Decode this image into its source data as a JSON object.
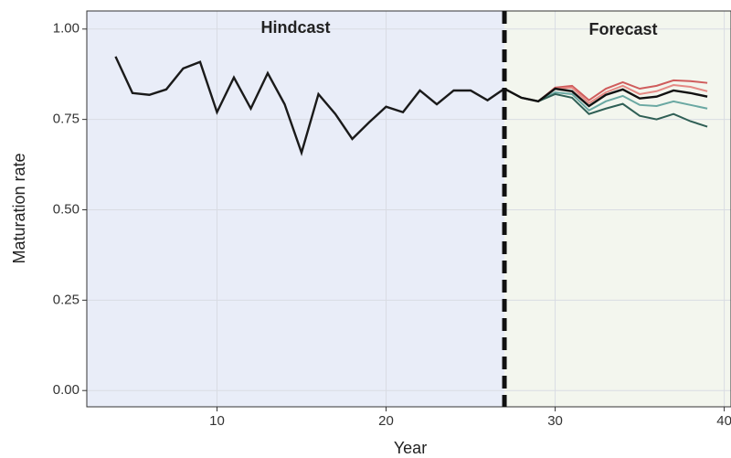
{
  "chart_data": {
    "type": "line",
    "xlabel": "Year",
    "ylabel": "Maturation rate",
    "annotations": [
      "Hindcast",
      "Forecast"
    ],
    "divider_x": 27,
    "xlim": [
      2.3,
      40.4
    ],
    "ylim": [
      -0.045,
      1.05
    ],
    "xticks": [
      10,
      20,
      30,
      40
    ],
    "yticks": [
      {
        "value": 0,
        "label": "0.00"
      },
      0.25,
      {
        "value": 0.5,
        "label": "0.50"
      },
      0.75,
      {
        "value": 1,
        "label": "1.00"
      }
    ],
    "grid": true,
    "series": [
      {
        "color": "#cf5c5c",
        "x": [
          27,
          28,
          29,
          30,
          31,
          32,
          33,
          34,
          35,
          36,
          37,
          38,
          39
        ],
        "values": [
          0.835,
          0.81,
          0.8,
          0.838,
          0.843,
          0.803,
          0.835,
          0.853,
          0.835,
          0.843,
          0.858,
          0.856,
          0.851
        ]
      },
      {
        "color": "#e58a85",
        "x": [
          27,
          28,
          29,
          30,
          31,
          32,
          33,
          34,
          35,
          36,
          37,
          38,
          39
        ],
        "values": [
          0.835,
          0.81,
          0.8,
          0.835,
          0.838,
          0.795,
          0.825,
          0.843,
          0.82,
          0.828,
          0.845,
          0.84,
          0.828
        ]
      },
      {
        "color": "#6aa8a2",
        "x": [
          27,
          28,
          29,
          30,
          31,
          32,
          33,
          34,
          35,
          36,
          37,
          38,
          39
        ],
        "values": [
          0.835,
          0.81,
          0.8,
          0.825,
          0.82,
          0.775,
          0.8,
          0.815,
          0.79,
          0.787,
          0.8,
          0.79,
          0.78
        ]
      },
      {
        "color": "#2f5f55",
        "x": [
          27,
          28,
          29,
          30,
          31,
          32,
          33,
          34,
          35,
          36,
          37,
          38,
          39
        ],
        "values": [
          0.835,
          0.81,
          0.8,
          0.82,
          0.81,
          0.765,
          0.78,
          0.793,
          0.76,
          0.75,
          0.765,
          0.745,
          0.73
        ]
      },
      {
        "color": "#111111",
        "x": [
          27,
          28,
          29,
          30,
          31,
          32,
          33,
          34,
          35,
          36,
          37,
          38,
          39
        ],
        "values": [
          0.835,
          0.81,
          0.8,
          0.835,
          0.828,
          0.787,
          0.818,
          0.833,
          0.808,
          0.813,
          0.83,
          0.823,
          0.813
        ]
      },
      {
        "color": "#1a1a1a",
        "x": [
          4,
          5,
          6,
          7,
          8,
          9,
          10,
          11,
          12,
          13,
          14,
          15,
          16,
          17,
          18,
          19,
          20,
          21,
          22,
          23,
          24,
          25,
          26,
          27
        ],
        "values": [
          0.924,
          0.823,
          0.818,
          0.833,
          0.891,
          0.909,
          0.77,
          0.866,
          0.78,
          0.878,
          0.792,
          0.658,
          0.82,
          0.765,
          0.696,
          0.742,
          0.785,
          0.77,
          0.83,
          0.792,
          0.83,
          0.83,
          0.803,
          0.835
        ]
      }
    ]
  }
}
